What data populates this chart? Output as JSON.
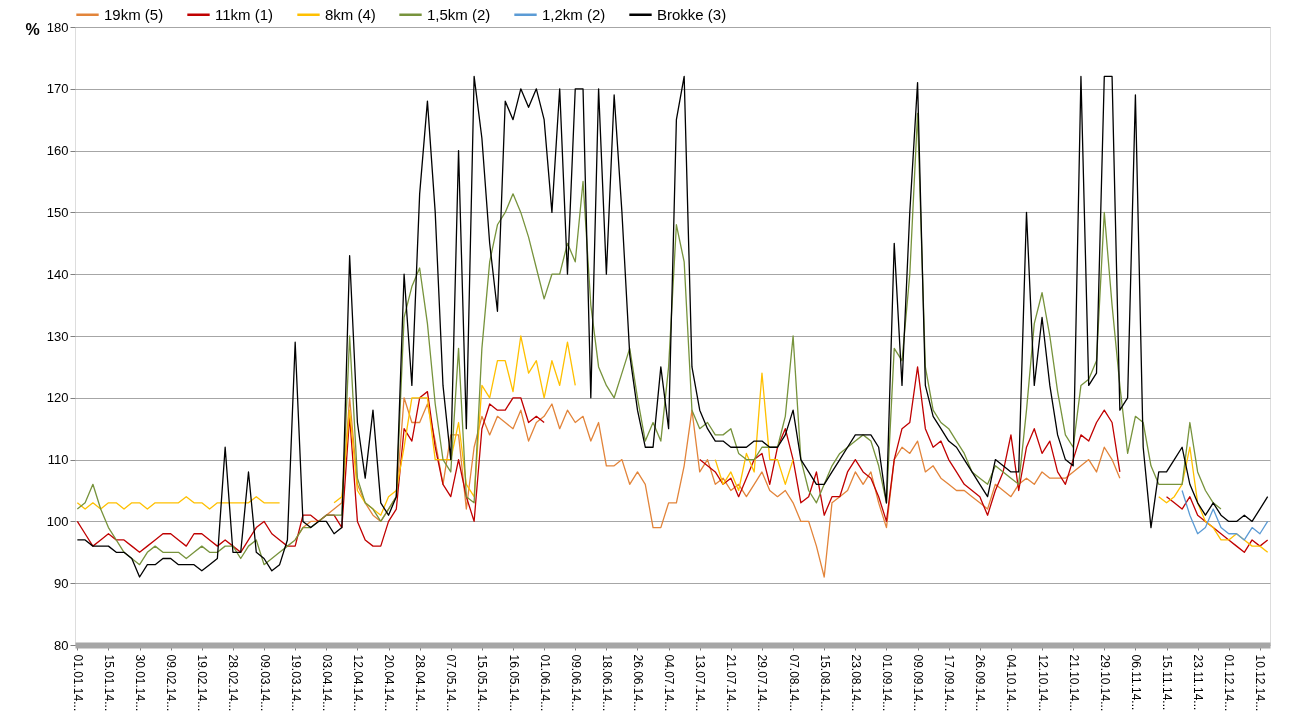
{
  "chart_data": {
    "type": "line",
    "ylabel": "%",
    "ylim": [
      80,
      180
    ],
    "yticks": [
      80,
      90,
      100,
      110,
      120,
      130,
      140,
      150,
      160,
      170,
      180
    ],
    "categories": [
      "01.01.14...",
      null,
      null,
      null,
      "15.01.14...",
      null,
      null,
      null,
      "30.01.14...",
      null,
      null,
      null,
      "09.02.14...",
      null,
      null,
      null,
      "19.02.14...",
      null,
      null,
      null,
      "28.02.14...",
      null,
      null,
      null,
      "09.03.14...",
      null,
      null,
      null,
      "19.03.14...",
      null,
      null,
      null,
      "03.04.14...",
      null,
      null,
      null,
      "12.04.14...",
      null,
      null,
      null,
      "20.04.14...",
      null,
      null,
      null,
      "28.04.14...",
      null,
      null,
      null,
      "07.05.14...",
      null,
      null,
      null,
      "15.05.14...",
      null,
      null,
      null,
      "16.05.14...",
      null,
      null,
      null,
      "01.06.14...",
      null,
      null,
      null,
      "09.06.14...",
      null,
      null,
      null,
      "18.06.14...",
      null,
      null,
      null,
      "26.06.14...",
      null,
      null,
      null,
      "04.07.14...",
      null,
      null,
      null,
      "13.07.14...",
      null,
      null,
      null,
      "21.07.14...",
      null,
      null,
      null,
      "29.07.14...",
      null,
      null,
      null,
      "07.08.14...",
      null,
      null,
      null,
      "15.08.14...",
      null,
      null,
      null,
      "23.08.14...",
      null,
      null,
      null,
      "01.09.14...",
      null,
      null,
      null,
      "09.09.14...",
      null,
      null,
      null,
      "17.09.14...",
      null,
      null,
      null,
      "26.09.14...",
      null,
      null,
      null,
      "04.10.14...",
      null,
      null,
      null,
      "12.10.14...",
      null,
      null,
      null,
      "21.10.14...",
      null,
      null,
      null,
      "29.10.14...",
      null,
      null,
      null,
      "06.11.14...",
      null,
      null,
      null,
      "15.11.14...",
      null,
      null,
      null,
      "23.11.14...",
      null,
      null,
      null,
      "01.12.14...",
      null,
      null,
      null,
      "10.12.14...",
      null
    ],
    "grid": "y",
    "legend": "top",
    "line_style": "solid",
    "marker": "none",
    "series": [
      {
        "name": "19km (5)",
        "color": "#e2843a",
        "values": [
          null,
          null,
          null,
          null,
          null,
          null,
          null,
          null,
          null,
          null,
          null,
          null,
          null,
          null,
          null,
          null,
          null,
          null,
          null,
          null,
          null,
          null,
          null,
          null,
          null,
          null,
          null,
          null,
          97,
          99,
          100,
          100,
          101,
          102,
          103,
          120,
          106,
          103,
          101,
          100,
          102,
          104,
          120,
          116,
          116,
          119,
          113,
          106,
          114,
          114,
          102,
          112,
          117,
          114,
          117,
          116,
          115,
          118,
          113,
          116,
          117,
          119,
          115,
          118,
          116,
          117,
          113,
          116,
          109,
          109,
          110,
          106,
          108,
          106,
          99,
          99,
          103,
          103,
          109,
          118,
          108,
          110,
          106,
          107,
          105,
          106,
          104,
          106,
          108,
          105,
          104,
          105,
          103,
          100,
          100,
          96,
          91,
          103,
          104,
          105,
          108,
          106,
          108,
          103,
          99,
          110,
          112,
          111,
          113,
          108,
          109,
          107,
          106,
          105,
          105,
          104,
          103,
          102,
          106,
          105,
          104,
          106,
          107,
          106,
          108,
          107,
          107,
          107,
          108,
          109,
          110,
          108,
          112,
          110,
          107,
          null,
          null,
          null,
          null,
          null,
          null,
          null,
          null,
          null,
          null,
          null,
          null,
          null,
          null,
          null,
          null,
          null,
          null,
          null
        ]
      },
      {
        "name": "11km (1)",
        "color": "#c00000",
        "values": [
          100,
          98,
          96,
          97,
          98,
          97,
          97,
          96,
          95,
          96,
          97,
          98,
          98,
          97,
          96,
          98,
          98,
          97,
          96,
          97,
          96,
          95,
          97,
          99,
          100,
          98,
          97,
          96,
          96,
          101,
          101,
          100,
          101,
          101,
          99,
          117,
          100,
          97,
          96,
          96,
          100,
          102,
          115,
          113,
          120,
          121,
          112,
          106,
          104,
          110,
          104,
          100,
          115,
          119,
          118,
          118,
          120,
          120,
          116,
          117,
          116,
          null,
          null,
          null,
          null,
          null,
          null,
          null,
          null,
          null,
          null,
          null,
          null,
          null,
          null,
          null,
          null,
          null,
          null,
          null,
          110,
          109,
          108,
          106,
          107,
          104,
          107,
          110,
          111,
          106,
          112,
          115,
          110,
          103,
          104,
          108,
          101,
          104,
          104,
          108,
          110,
          108,
          107,
          104,
          100,
          110,
          115,
          116,
          125,
          115,
          112,
          113,
          110,
          108,
          106,
          105,
          104,
          101,
          105,
          108,
          114,
          105,
          112,
          115,
          111,
          113,
          108,
          106,
          110,
          114,
          113,
          116,
          118,
          116,
          108,
          null,
          null,
          null,
          null,
          null,
          104,
          103,
          102,
          104,
          101,
          100,
          99,
          98,
          97,
          96,
          95,
          97,
          96,
          97
        ]
      },
      {
        "name": "8km (4)",
        "color": "#ffc000",
        "values": [
          103,
          102,
          103,
          102,
          103,
          103,
          102,
          103,
          103,
          102,
          103,
          103,
          103,
          103,
          104,
          103,
          103,
          102,
          103,
          103,
          103,
          103,
          103,
          104,
          103,
          103,
          103,
          null,
          null,
          null,
          null,
          null,
          null,
          103,
          104,
          118,
          105,
          103,
          102,
          101,
          104,
          105,
          112,
          120,
          120,
          120,
          110,
          110,
          110,
          116,
          106,
          104,
          122,
          120,
          126,
          126,
          121,
          130,
          124,
          126,
          120,
          126,
          122,
          129,
          122,
          null,
          null,
          null,
          null,
          null,
          null,
          null,
          null,
          null,
          null,
          null,
          null,
          null,
          null,
          null,
          null,
          null,
          110,
          106,
          108,
          105,
          111,
          108,
          124,
          110,
          110,
          106,
          110,
          null,
          null,
          null,
          null,
          null,
          null,
          null,
          null,
          null,
          null,
          null,
          null,
          null,
          null,
          null,
          null,
          null,
          null,
          null,
          null,
          null,
          null,
          null,
          null,
          null,
          null,
          null,
          null,
          null,
          null,
          null,
          null,
          null,
          null,
          null,
          null,
          null,
          null,
          null,
          null,
          null,
          null,
          null,
          null,
          null,
          null,
          104,
          103,
          104,
          106,
          112,
          103,
          100,
          99,
          97,
          97,
          98,
          97,
          96,
          96,
          95
        ]
      },
      {
        "name": "1,5km (2)",
        "color": "#77933c",
        "values": [
          102,
          103,
          106,
          102,
          99,
          97,
          95,
          94,
          93,
          95,
          96,
          95,
          95,
          95,
          94,
          95,
          96,
          95,
          95,
          96,
          96,
          94,
          96,
          97,
          93,
          94,
          95,
          96,
          97,
          99,
          99,
          100,
          101,
          101,
          101,
          130,
          107,
          103,
          102,
          100,
          102,
          104,
          133,
          138,
          141,
          132,
          119,
          110,
          108,
          128,
          104,
          103,
          128,
          142,
          148,
          150,
          153,
          150,
          146,
          141,
          136,
          140,
          140,
          145,
          142,
          155,
          135,
          125,
          122,
          120,
          124,
          128,
          120,
          113,
          116,
          113,
          125,
          148,
          142,
          118,
          115,
          116,
          114,
          114,
          115,
          111,
          110,
          110,
          112,
          112,
          112,
          117,
          130,
          110,
          105,
          103,
          106,
          109,
          111,
          112,
          113,
          114,
          113,
          109,
          103,
          128,
          126,
          140,
          166,
          125,
          118,
          116,
          115,
          113,
          111,
          108,
          107,
          106,
          109,
          108,
          107,
          106,
          118,
          132,
          137,
          130,
          121,
          114,
          112,
          122,
          123,
          126,
          150,
          135,
          122,
          111,
          117,
          116,
          109,
          106,
          106,
          106,
          106,
          116,
          108,
          105,
          103,
          102,
          null,
          null,
          null,
          null,
          null,
          null
        ]
      },
      {
        "name": "1,2km (2)",
        "color": "#5b9bd5",
        "values": [
          null,
          null,
          null,
          null,
          null,
          null,
          null,
          null,
          null,
          null,
          null,
          null,
          null,
          null,
          null,
          null,
          null,
          null,
          null,
          null,
          null,
          null,
          null,
          null,
          null,
          null,
          null,
          null,
          null,
          null,
          null,
          null,
          null,
          null,
          null,
          null,
          null,
          null,
          null,
          null,
          null,
          null,
          null,
          null,
          null,
          null,
          null,
          null,
          null,
          null,
          null,
          null,
          null,
          null,
          null,
          null,
          null,
          null,
          null,
          null,
          null,
          null,
          null,
          null,
          null,
          null,
          null,
          null,
          null,
          null,
          null,
          null,
          null,
          null,
          null,
          null,
          null,
          null,
          null,
          null,
          null,
          null,
          null,
          null,
          null,
          null,
          null,
          null,
          null,
          null,
          null,
          null,
          null,
          null,
          null,
          null,
          null,
          null,
          null,
          null,
          null,
          null,
          null,
          null,
          null,
          null,
          null,
          null,
          null,
          null,
          null,
          null,
          null,
          null,
          null,
          null,
          null,
          null,
          null,
          null,
          null,
          null,
          null,
          null,
          null,
          null,
          null,
          null,
          null,
          null,
          null,
          null,
          null,
          null,
          null,
          null,
          null,
          null,
          null,
          null,
          null,
          null,
          105,
          101,
          98,
          99,
          102,
          99,
          98,
          98,
          97,
          99,
          98,
          100
        ]
      },
      {
        "name": "Brokke (3)",
        "color": "#000000",
        "values": [
          97,
          97,
          96,
          96,
          96,
          95,
          95,
          94,
          91,
          93,
          93,
          94,
          94,
          93,
          93,
          93,
          92,
          93,
          94,
          112,
          95,
          95,
          108,
          95,
          94,
          92,
          93,
          97,
          129,
          100,
          99,
          100,
          100,
          98,
          99,
          143,
          116,
          107,
          118,
          103,
          101,
          104,
          140,
          122,
          153,
          168,
          150,
          122,
          110,
          160,
          115,
          172,
          162,
          145,
          134,
          168,
          165,
          170,
          167,
          170,
          165,
          150,
          170,
          140,
          170,
          170,
          120,
          170,
          140,
          169,
          150,
          127,
          118,
          112,
          112,
          125,
          115,
          165,
          172,
          125,
          118,
          115,
          113,
          113,
          112,
          112,
          112,
          113,
          113,
          112,
          112,
          114,
          118,
          110,
          108,
          106,
          106,
          108,
          110,
          112,
          114,
          114,
          114,
          112,
          103,
          145,
          122,
          150,
          171,
          122,
          117,
          115,
          113,
          112,
          110,
          108,
          106,
          104,
          110,
          109,
          108,
          108,
          150,
          122,
          133,
          122,
          114,
          110,
          109,
          172,
          122,
          124,
          172,
          172,
          118,
          120,
          169,
          112,
          99,
          108,
          108,
          110,
          112,
          106,
          103,
          101,
          103,
          101,
          100,
          100,
          101,
          100,
          102,
          104
        ]
      }
    ]
  }
}
